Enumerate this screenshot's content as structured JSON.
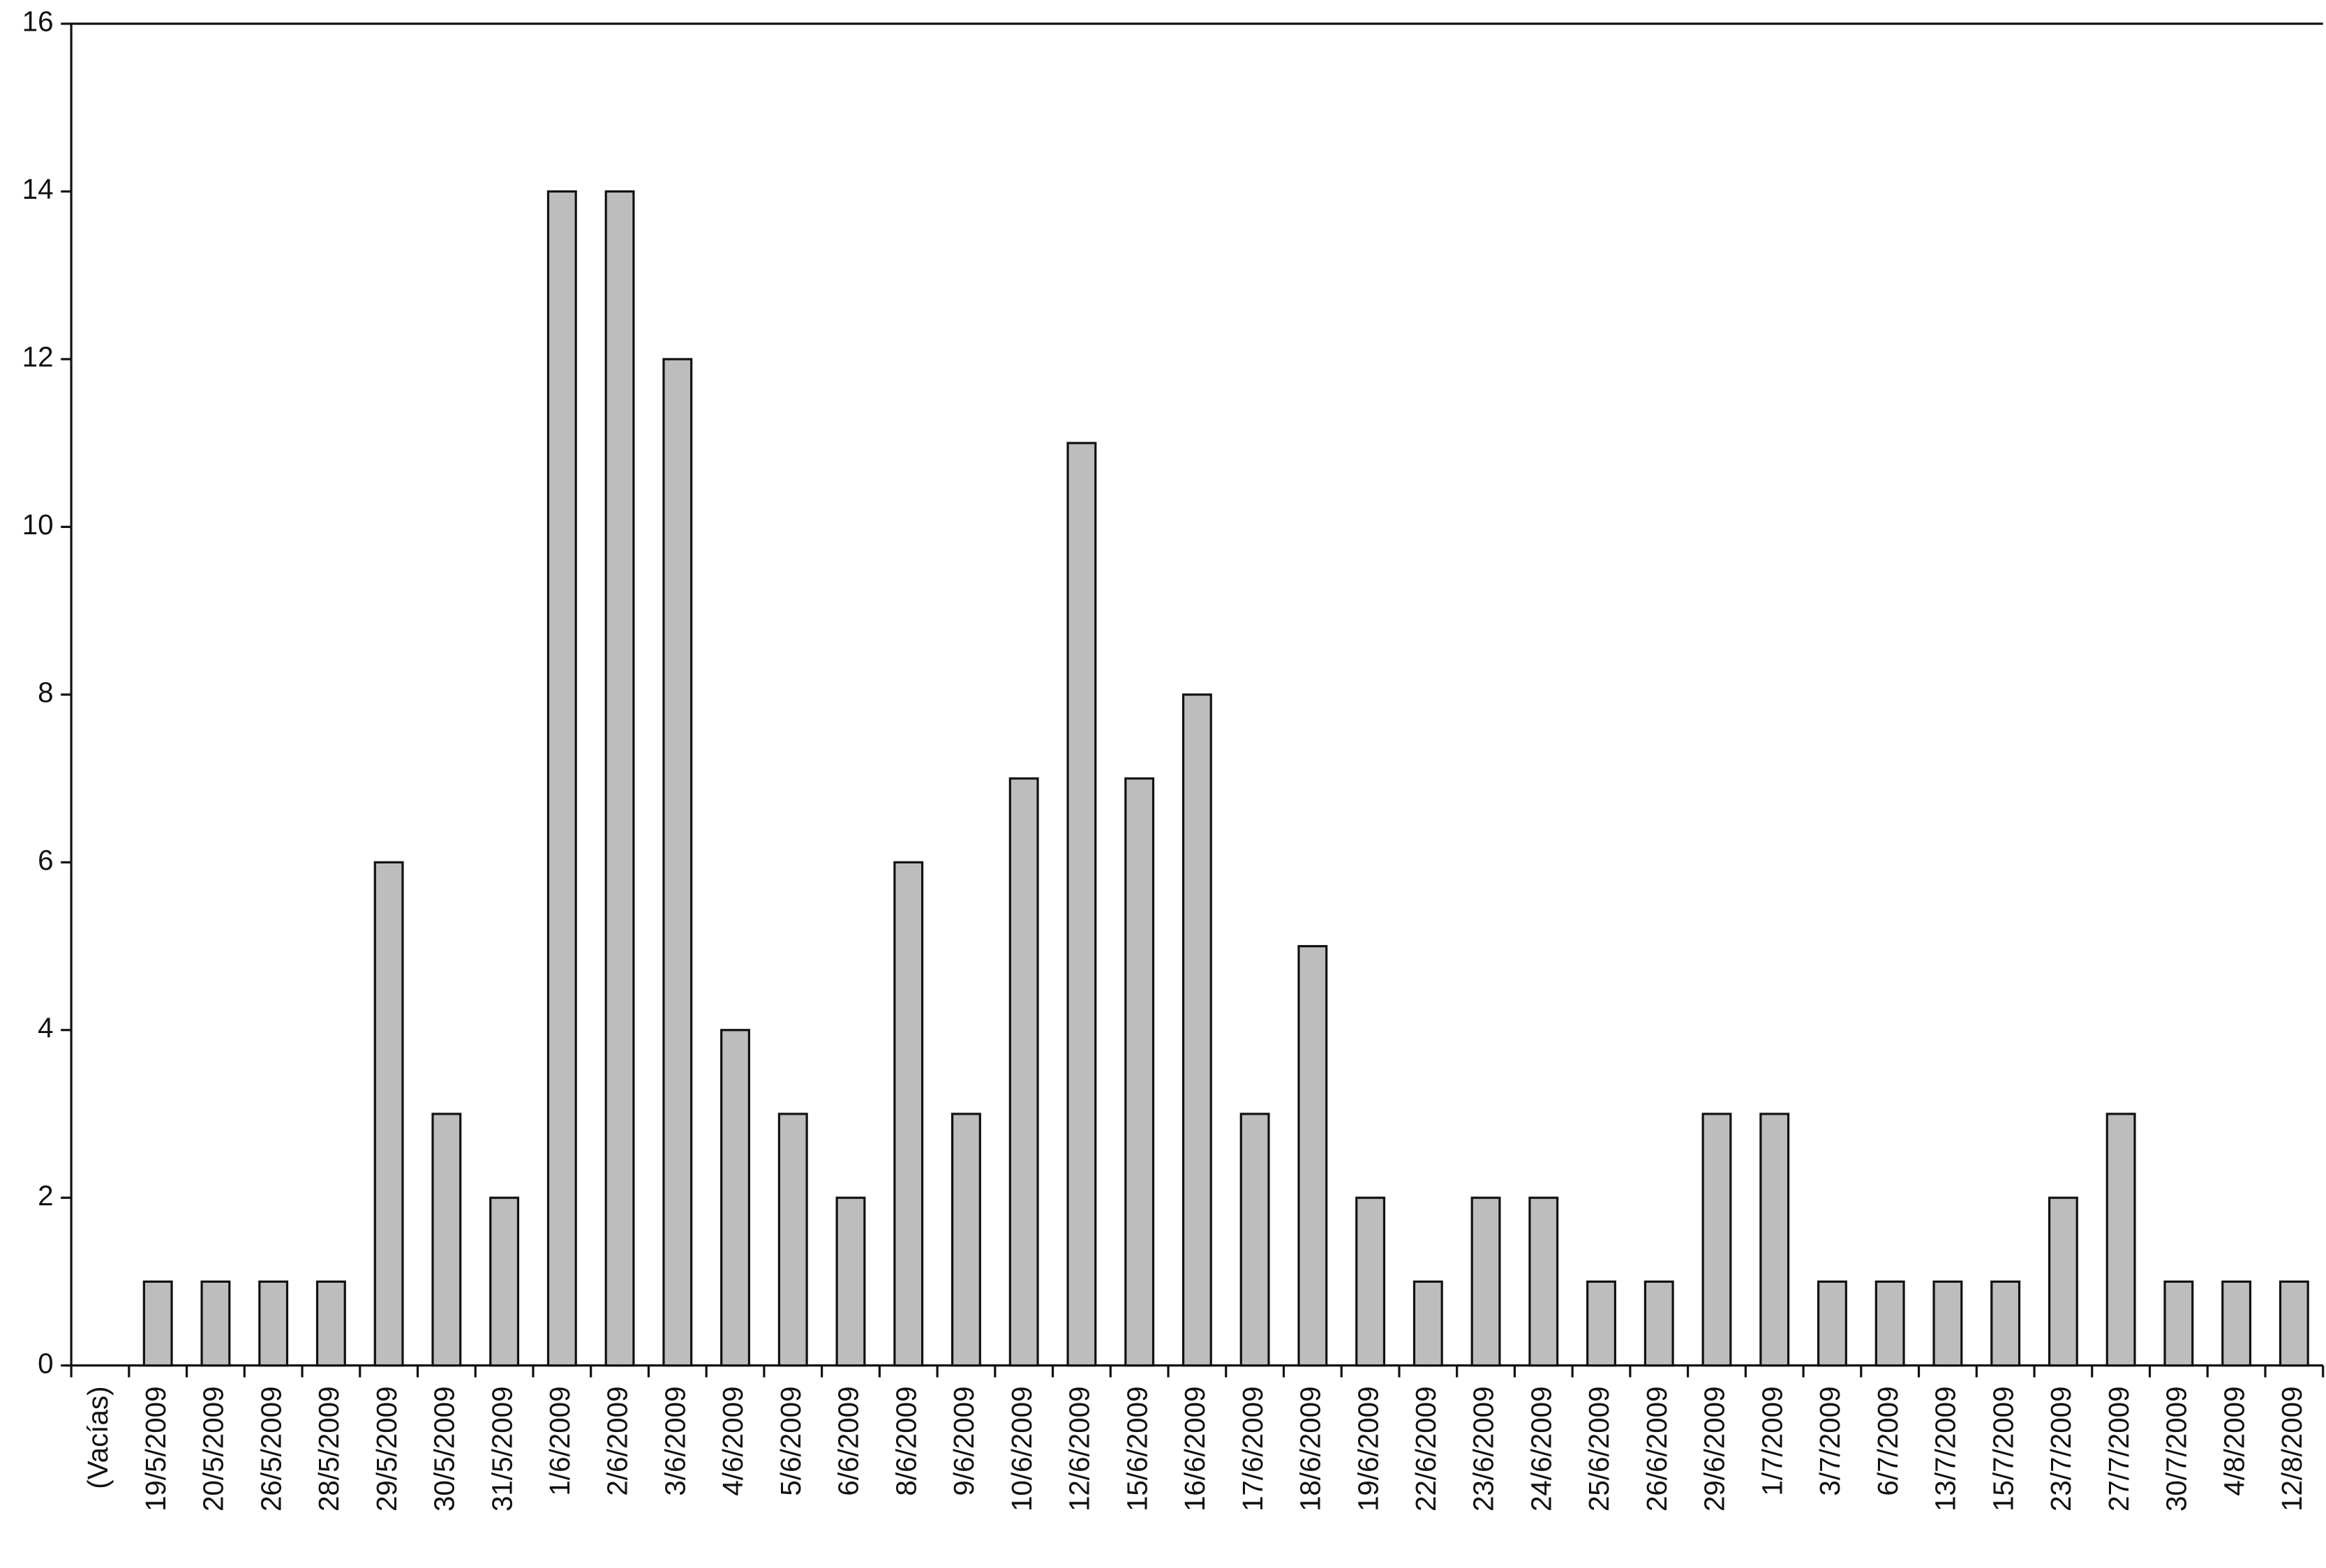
{
  "chart_data": {
    "type": "bar",
    "categories": [
      "(Vacías)",
      "19/5/2009",
      "20/5/2009",
      "26/5/2009",
      "28/5/2009",
      "29/5/2009",
      "30/5/2009",
      "31/5/2009",
      "1/6/2009",
      "2/6/2009",
      "3/6/2009",
      "4/6/2009",
      "5/6/2009",
      "6/6/2009",
      "8/6/2009",
      "9/6/2009",
      "10/6/2009",
      "12/6/2009",
      "15/6/2009",
      "16/6/2009",
      "17/6/2009",
      "18/6/2009",
      "19/6/2009",
      "22/6/2009",
      "23/6/2009",
      "24/6/2009",
      "25/6/2009",
      "26/6/2009",
      "29/6/2009",
      "1/7/2009",
      "3/7/2009",
      "6/7/2009",
      "13/7/2009",
      "15/7/2009",
      "23/7/2009",
      "27/7/2009",
      "30/7/2009",
      "4/8/2009",
      "12/8/2009"
    ],
    "values": [
      null,
      1,
      1,
      1,
      1,
      6,
      3,
      2,
      14,
      14,
      12,
      4,
      3,
      2,
      6,
      3,
      7,
      11,
      7,
      8,
      3,
      5,
      2,
      1,
      2,
      2,
      1,
      1,
      3,
      3,
      1,
      1,
      1,
      1,
      2,
      3,
      1,
      1,
      1
    ],
    "color": "#bdbdbd",
    "ylim": [
      0,
      16
    ],
    "yticks": [
      0,
      2,
      4,
      6,
      8,
      10,
      12,
      14,
      16
    ],
    "grid": false
  }
}
